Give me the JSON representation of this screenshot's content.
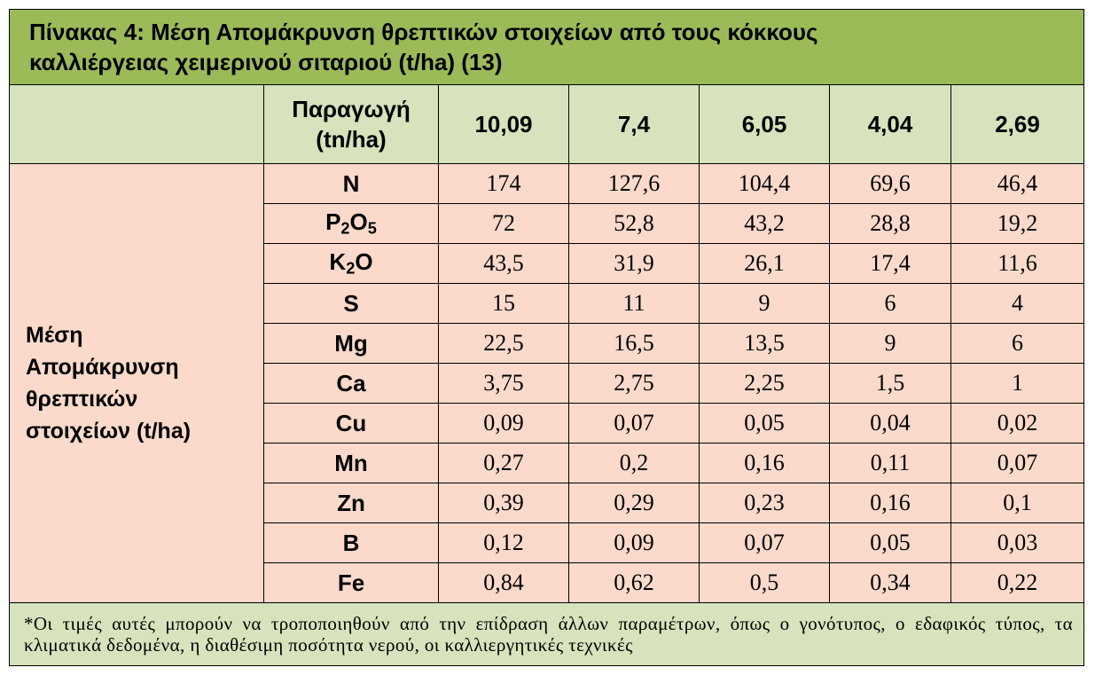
{
  "table": {
    "title_line1": "Πίνακας 4: Μέση Απομάκρυνση θρεπτικών στοιχείων από τους κόκκους",
    "title_line2": "καλλιέργειας χειμερινού σιταριού (t/ha) (13)",
    "header_label_line1": "Παραγωγή",
    "header_label_line2": "(tn/ha)",
    "production": [
      "10,09",
      "7,4",
      "6,05",
      "4,04",
      "2,69"
    ],
    "row_group_label": [
      "Μέση",
      "Απομάκρυνση",
      "θρεπτικών",
      "στοιχείων (t/ha)"
    ],
    "rows": [
      {
        "element": "N",
        "values": [
          "174",
          "127,6",
          "104,4",
          "69,6",
          "46,4"
        ]
      },
      {
        "element_main": "P",
        "element_sub1": "2",
        "element_mid": "O",
        "element_sub2": "5",
        "values": [
          "72",
          "52,8",
          "43,2",
          "28,8",
          "19,2"
        ]
      },
      {
        "element_main": "K",
        "element_sub1": "2",
        "element_mid": "O",
        "values": [
          "43,5",
          "31,9",
          "26,1",
          "17,4",
          "11,6"
        ]
      },
      {
        "element": "S",
        "values": [
          "15",
          "11",
          "9",
          "6",
          "4"
        ]
      },
      {
        "element": "Mg",
        "values": [
          "22,5",
          "16,5",
          "13,5",
          "9",
          "6"
        ]
      },
      {
        "element": "Ca",
        "values": [
          "3,75",
          "2,75",
          "2,25",
          "1,5",
          "1"
        ]
      },
      {
        "element": "Cu",
        "values": [
          "0,09",
          "0,07",
          "0,05",
          "0,04",
          "0,02"
        ]
      },
      {
        "element": "Mn",
        "values": [
          "0,27",
          "0,2",
          "0,16",
          "0,11",
          "0,07"
        ]
      },
      {
        "element": "Zn",
        "values": [
          "0,39",
          "0,29",
          "0,23",
          "0,16",
          "0,1"
        ]
      },
      {
        "element": "B",
        "values": [
          "0,12",
          "0,09",
          "0,07",
          "0,05",
          "0,03"
        ]
      },
      {
        "element": "Fe",
        "values": [
          "0,84",
          "0,62",
          "0,5",
          "0,34",
          "0,22"
        ]
      }
    ],
    "note": "*Οι τιμές αυτές μπορούν να τροποποιηθούν από την επίδραση άλλων παραμέτρων, όπως ο γονότυπος, ο εδαφικός τύπος, τα κλιματικά δεδομένα, η διαθέσιμη ποσότητα νερού, οι καλλιεργητικές τεχνικές"
  },
  "colors": {
    "title_bg": "#9bbb59",
    "header_bg": "#d6e3bc",
    "data_bg": "#fbdacb",
    "note_bg": "#d6e3bc"
  }
}
